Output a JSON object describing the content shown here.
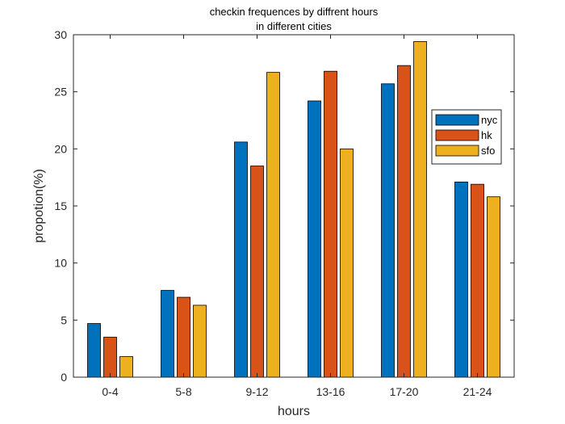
{
  "chart_data": {
    "type": "bar",
    "title": [
      "checkin frequences by diffrent hours",
      "in different cities"
    ],
    "xlabel": "hours",
    "ylabel": "propotion(%)",
    "categories": [
      "0-4",
      "5-8",
      "9-12",
      "13-16",
      "17-20",
      "21-24"
    ],
    "ylim": [
      0,
      30
    ],
    "yticks": [
      0,
      5,
      10,
      15,
      20,
      25,
      30
    ],
    "legend_position": "right",
    "series": [
      {
        "name": "nyc",
        "color": "#0072BD",
        "values": [
          4.7,
          7.6,
          20.6,
          24.2,
          25.7,
          17.1
        ]
      },
      {
        "name": "hk",
        "color": "#D95319",
        "values": [
          3.5,
          7.0,
          18.5,
          26.8,
          27.3,
          16.9
        ]
      },
      {
        "name": "sfo",
        "color": "#EDB120",
        "values": [
          1.8,
          6.3,
          26.7,
          20.0,
          29.4,
          15.8
        ]
      }
    ]
  }
}
